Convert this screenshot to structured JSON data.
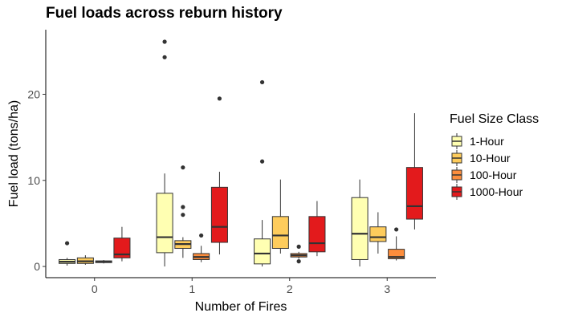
{
  "chart_data": {
    "type": "boxplot",
    "title": "Fuel loads across reburn history",
    "xlabel": "Number of Fires",
    "ylabel": "Fuel load (tons/ha)",
    "categories": [
      "0",
      "1",
      "2",
      "3"
    ],
    "ylim": [
      -1.3,
      27.5
    ],
    "yticks": [
      0,
      10,
      20
    ],
    "grid": false,
    "legend": {
      "title": "Fuel Size Class",
      "position": "right"
    },
    "series": [
      {
        "name": "1-Hour",
        "color": "#FFFFB2",
        "boxes": [
          {
            "min": 0.1,
            "q1": 0.35,
            "median": 0.55,
            "q3": 0.8,
            "max": 1.0,
            "outliers": [
              2.7
            ]
          },
          {
            "min": 0.0,
            "q1": 1.6,
            "median": 3.4,
            "q3": 8.5,
            "max": 10.8,
            "outliers": [
              24.3,
              26.1
            ]
          },
          {
            "min": 0.0,
            "q1": 0.3,
            "median": 1.5,
            "q3": 3.2,
            "max": 5.4,
            "outliers": [
              12.2,
              21.4
            ]
          },
          {
            "min": 0.0,
            "q1": 0.8,
            "median": 3.8,
            "q3": 8.0,
            "max": 10.1,
            "outliers": []
          }
        ]
      },
      {
        "name": "10-Hour",
        "color": "#FECC5C",
        "boxes": [
          {
            "min": 0.2,
            "q1": 0.35,
            "median": 0.6,
            "q3": 1.0,
            "max": 1.3,
            "outliers": []
          },
          {
            "min": 1.0,
            "q1": 2.1,
            "median": 2.6,
            "q3": 3.0,
            "max": 3.4,
            "outliers": [
              6.0,
              6.9,
              11.5
            ]
          },
          {
            "min": 1.5,
            "q1": 2.1,
            "median": 3.6,
            "q3": 5.8,
            "max": 10.1,
            "outliers": []
          },
          {
            "min": 1.5,
            "q1": 2.9,
            "median": 3.4,
            "q3": 4.6,
            "max": 6.3,
            "outliers": []
          }
        ]
      },
      {
        "name": "100-Hour",
        "color": "#FD8D3C",
        "boxes": [
          {
            "min": 0.35,
            "q1": 0.45,
            "median": 0.55,
            "q3": 0.65,
            "max": 0.75,
            "outliers": []
          },
          {
            "min": 0.5,
            "q1": 0.8,
            "median": 1.1,
            "q3": 1.5,
            "max": 2.4,
            "outliers": [
              3.6
            ]
          },
          {
            "min": 0.9,
            "q1": 1.1,
            "median": 1.3,
            "q3": 1.5,
            "max": 1.7,
            "outliers": [
              0.6,
              2.3
            ]
          },
          {
            "min": 0.7,
            "q1": 0.9,
            "median": 1.1,
            "q3": 2.0,
            "max": 3.5,
            "outliers": [
              4.3
            ]
          }
        ]
      },
      {
        "name": "1000-Hour",
        "color": "#E31A1C",
        "boxes": [
          {
            "min": 0.6,
            "q1": 1.0,
            "median": 1.4,
            "q3": 3.3,
            "max": 4.6,
            "outliers": []
          },
          {
            "min": 1.4,
            "q1": 2.8,
            "median": 4.6,
            "q3": 9.2,
            "max": 11.0,
            "outliers": [
              19.5
            ]
          },
          {
            "min": 1.2,
            "q1": 1.7,
            "median": 2.7,
            "q3": 5.8,
            "max": 7.6,
            "outliers": []
          },
          {
            "min": 4.3,
            "q1": 5.5,
            "median": 7.0,
            "q3": 11.5,
            "max": 17.8,
            "outliers": []
          }
        ]
      }
    ]
  }
}
